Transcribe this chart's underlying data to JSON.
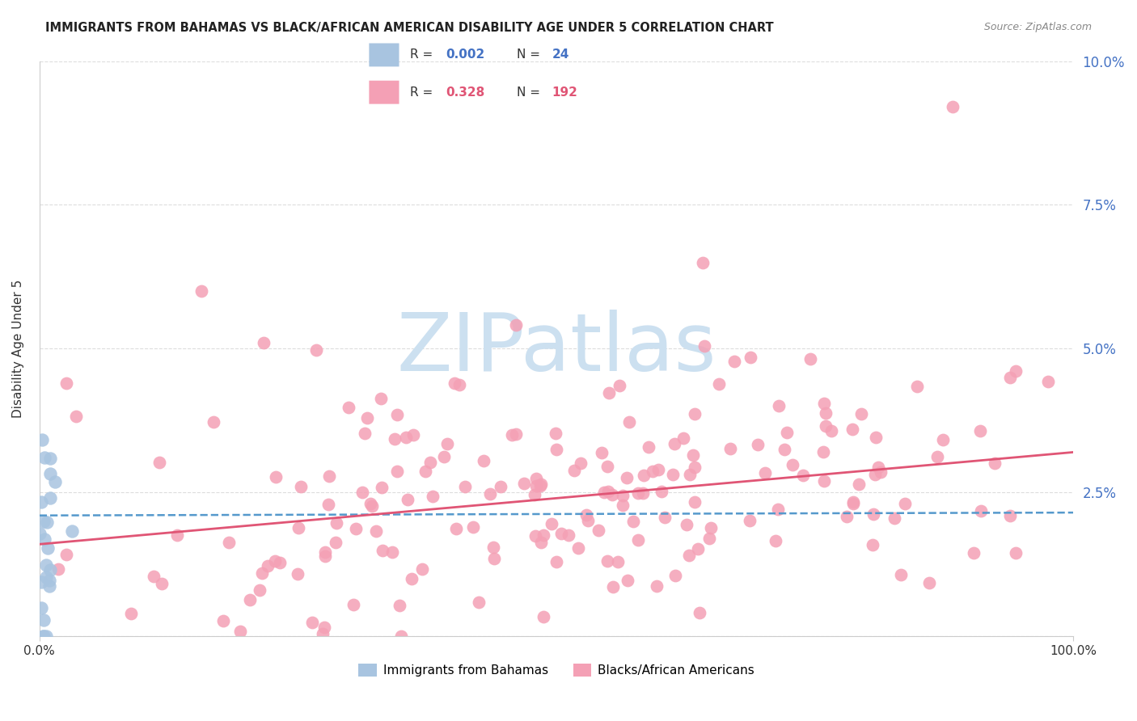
{
  "title": "IMMIGRANTS FROM BAHAMAS VS BLACK/AFRICAN AMERICAN DISABILITY AGE UNDER 5 CORRELATION CHART",
  "source": "Source: ZipAtlas.com",
  "ylabel": "Disability Age Under 5",
  "x_min": 0.0,
  "x_max": 1.0,
  "y_min": 0.0,
  "y_max": 0.1,
  "y_ticks": [
    0.0,
    0.025,
    0.05,
    0.075,
    0.1
  ],
  "y_tick_labels": [
    "",
    "2.5%",
    "5.0%",
    "7.5%",
    "10.0%"
  ],
  "x_tick_labels": [
    "0.0%",
    "100.0%"
  ],
  "legend_entries": [
    {
      "label": "Immigrants from Bahamas",
      "color": "#a8c4e0",
      "R": "0.002",
      "N": "24",
      "R_color": "#4472c4",
      "N_color": "#4472c4"
    },
    {
      "label": "Blacks/African Americans",
      "color": "#f4a0b5",
      "R": "0.328",
      "N": "192",
      "R_color": "#e05575",
      "N_color": "#e05575"
    }
  ],
  "background_color": "#ffffff",
  "grid_color": "#dddddd",
  "scatter_blue_color": "#a8c4e0",
  "scatter_pink_color": "#f4a0b5",
  "trendline_blue_color": "#5599cc",
  "trendline_pink_color": "#e05575",
  "watermark_text": "ZIPatlas",
  "watermark_color": "#cce0f0",
  "blue_trend_y": [
    0.021,
    0.0215
  ],
  "pink_trend_y": [
    0.016,
    0.032
  ]
}
